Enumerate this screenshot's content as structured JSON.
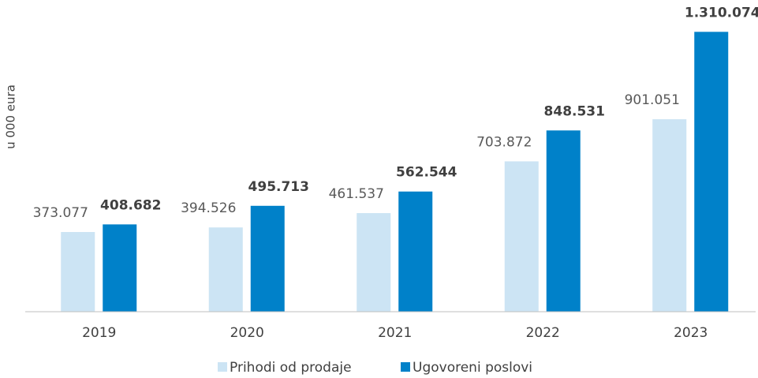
{
  "chart_data": {
    "type": "bar",
    "y_axis_label": "u 000 eura",
    "categories": [
      "2019",
      "2020",
      "2021",
      "2022",
      "2023"
    ],
    "series": [
      {
        "name": "Prihodi od prodaje",
        "color": "#cce4f4",
        "values": [
          373077,
          394526,
          461537,
          703872,
          901051
        ],
        "value_labels": [
          "373.077",
          "394.526",
          "461.537",
          "703.872",
          "901.051"
        ]
      },
      {
        "name": "Ugovoreni poslovi",
        "color": "#0081c9",
        "values": [
          408682,
          495713,
          562544,
          848531,
          1310074
        ],
        "value_labels": [
          "408.682",
          "495.713",
          "562.544",
          "848.531",
          "1.310.074"
        ]
      }
    ],
    "ylim": [
      0,
      1400000
    ],
    "legend": "bottom"
  }
}
